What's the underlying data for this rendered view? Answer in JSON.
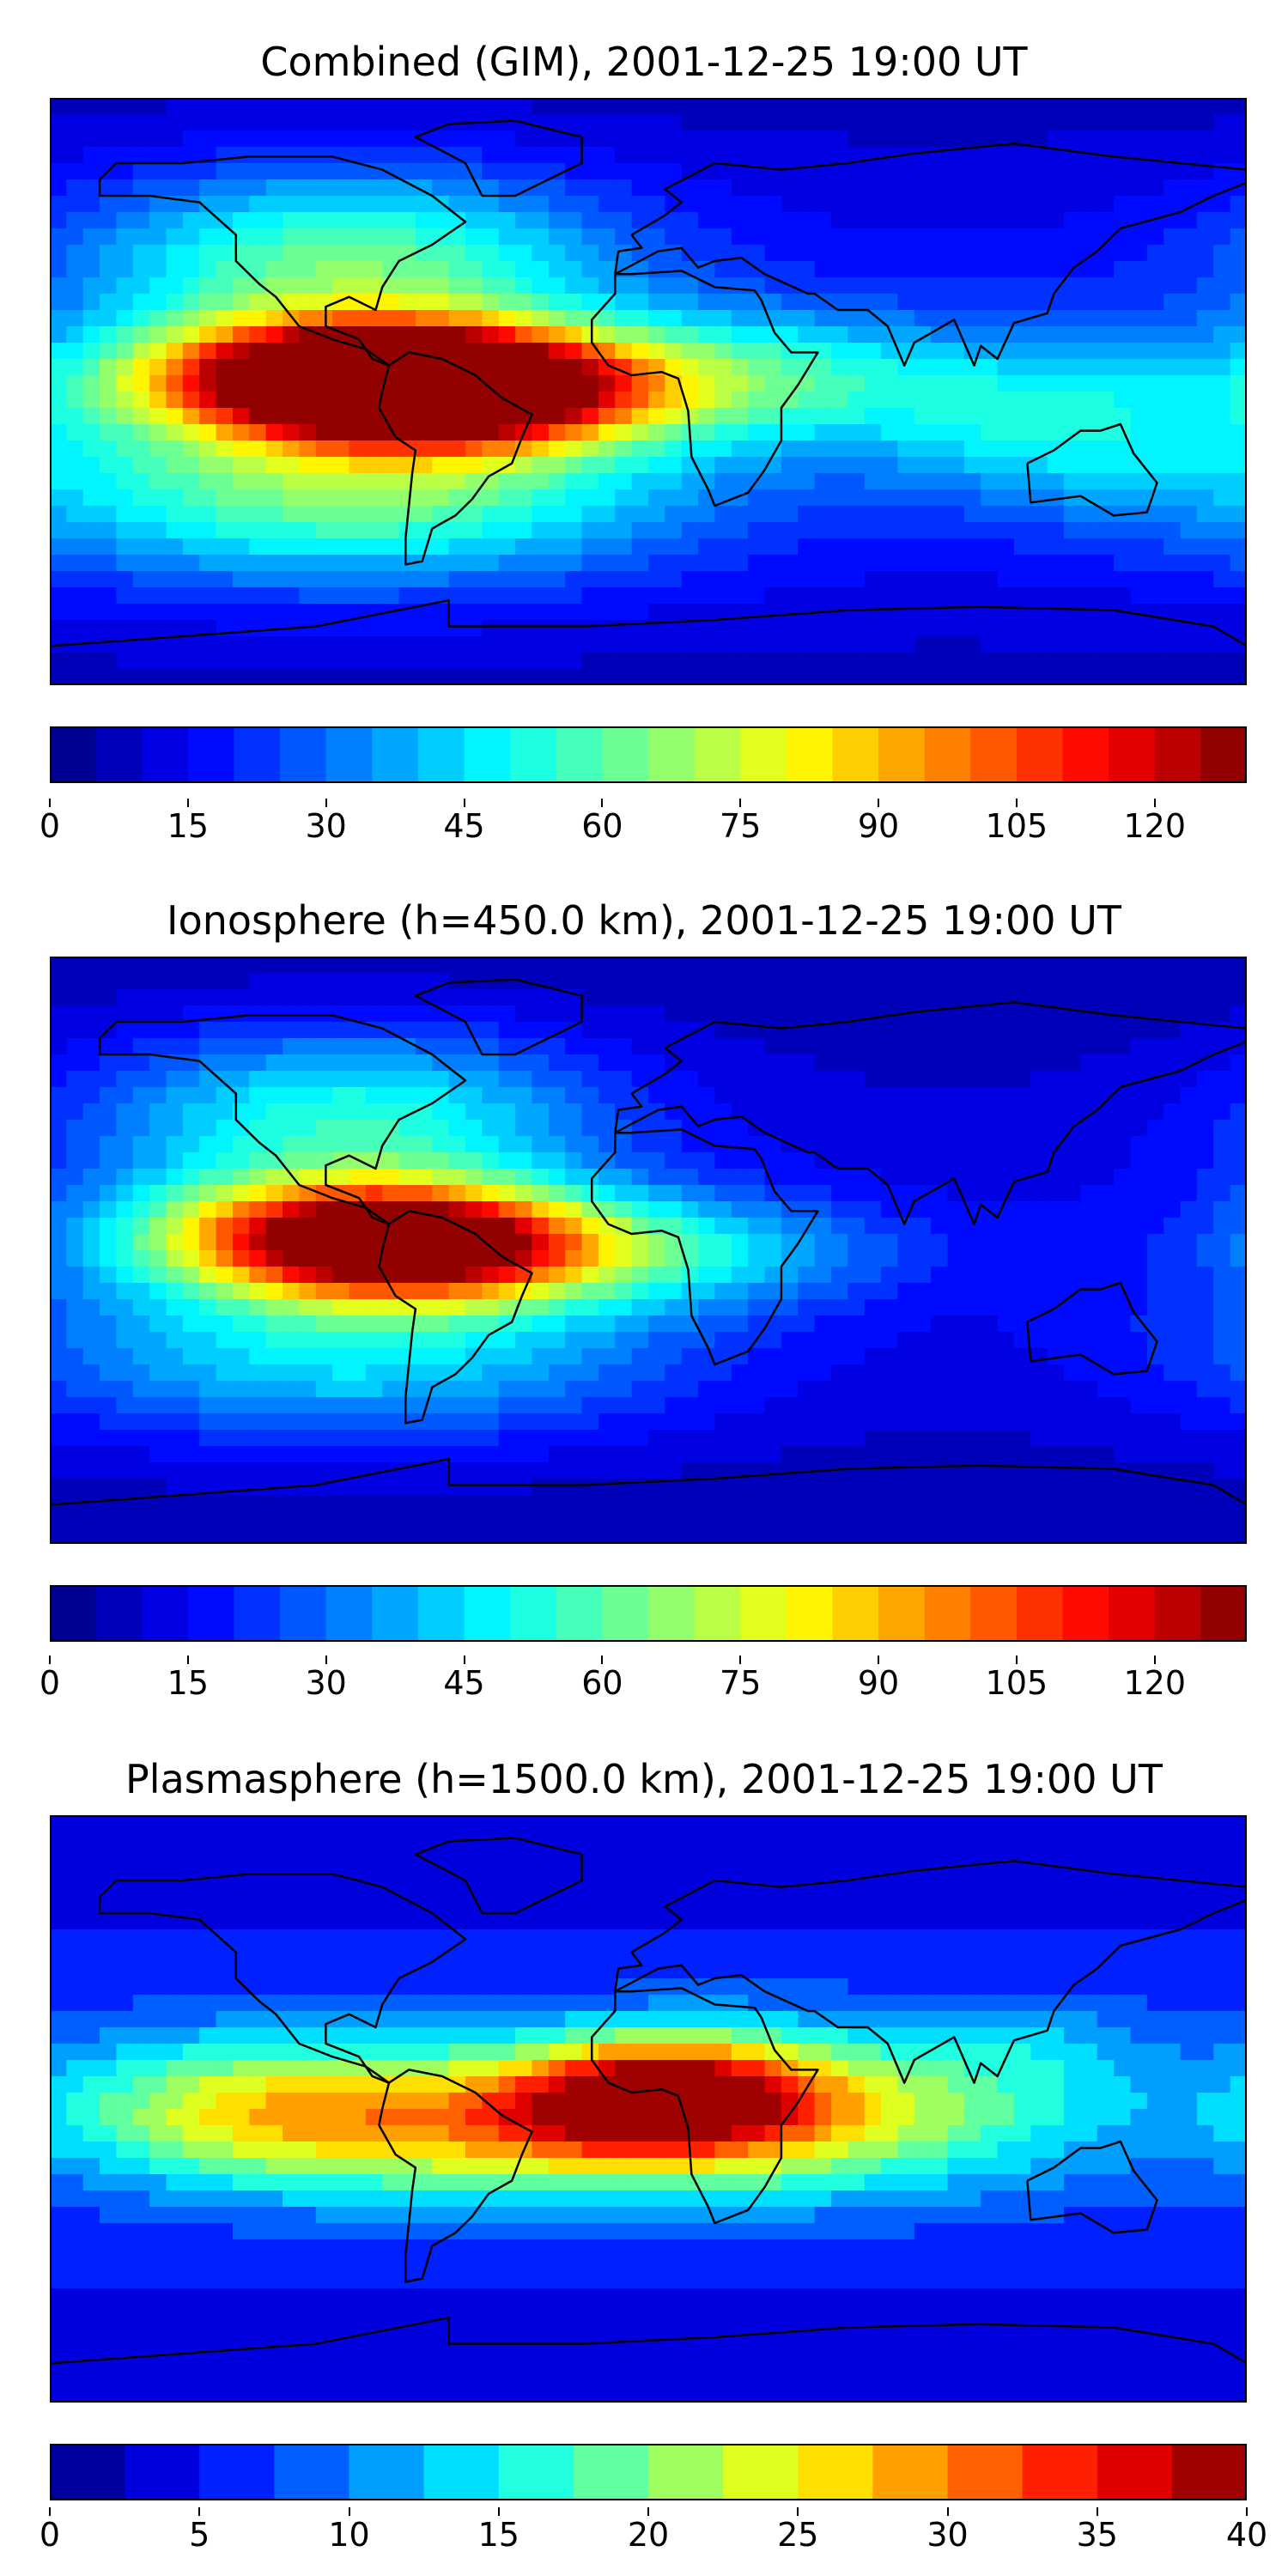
{
  "chart_data": [
    {
      "type": "heatmap",
      "title": "Combined (GIM), 2001-12-25 19:00 UT",
      "colorbar": {
        "min": 0,
        "max": 130,
        "levels": 26,
        "ticks": [
          0,
          15,
          30,
          45,
          60,
          75,
          90,
          105,
          120
        ]
      },
      "extent": {
        "lon": [
          -180,
          180
        ],
        "lat": [
          -90,
          90
        ]
      },
      "features": [
        {
          "lon": -90,
          "lat": 5,
          "value": 120,
          "spread_lon": 45,
          "spread_lat": 12
        },
        {
          "lon": -60,
          "lat": 0,
          "value": 112,
          "spread_lon": 40,
          "spread_lat": 12
        },
        {
          "lon": -90,
          "lat": 40,
          "value": 60,
          "spread_lon": 55,
          "spread_lat": 20
        },
        {
          "lon": -90,
          "lat": -30,
          "value": 62,
          "spread_lon": 70,
          "spread_lat": 20
        },
        {
          "lon": 30,
          "lat": 5,
          "value": 45,
          "spread_lon": 45,
          "spread_lat": 14
        },
        {
          "lon": 120,
          "lat": -10,
          "value": 40,
          "spread_lon": 40,
          "spread_lat": 18
        }
      ],
      "background": 22
    },
    {
      "type": "heatmap",
      "title": "Ionosphere  (h=450.0 km), 2001-12-25 19:00 UT",
      "colorbar": {
        "min": 0,
        "max": 130,
        "levels": 26,
        "ticks": [
          0,
          15,
          30,
          45,
          60,
          75,
          90,
          105,
          120
        ]
      },
      "extent": {
        "lon": [
          -180,
          180
        ],
        "lat": [
          -90,
          90
        ]
      },
      "features": [
        {
          "lon": -90,
          "lat": 5,
          "value": 88,
          "spread_lon": 45,
          "spread_lat": 12
        },
        {
          "lon": -65,
          "lat": 0,
          "value": 78,
          "spread_lon": 40,
          "spread_lat": 12
        },
        {
          "lon": -90,
          "lat": 40,
          "value": 52,
          "spread_lon": 55,
          "spread_lat": 20
        },
        {
          "lon": -90,
          "lat": -30,
          "value": 45,
          "spread_lon": 70,
          "spread_lat": 20
        },
        {
          "lon": 20,
          "lat": 0,
          "value": 32,
          "spread_lon": 40,
          "spread_lat": 12
        }
      ],
      "background": 15
    },
    {
      "type": "heatmap",
      "title": "Plasmasphere (h=1500.0 km), 2001-12-25 19:00 UT",
      "colorbar": {
        "min": 0,
        "max": 40,
        "levels": 16,
        "ticks": [
          0,
          5,
          10,
          15,
          20,
          25,
          30,
          35,
          40
        ]
      },
      "extent": {
        "lon": [
          -180,
          180
        ],
        "lat": [
          -90,
          90
        ]
      },
      "features": [
        {
          "lon": 5,
          "lat": 5,
          "value": 27,
          "spread_lon": 30,
          "spread_lat": 12
        },
        {
          "lon": -35,
          "lat": -5,
          "value": 23,
          "spread_lon": 60,
          "spread_lat": 16
        },
        {
          "lon": 60,
          "lat": 0,
          "value": 17,
          "spread_lon": 55,
          "spread_lat": 18
        },
        {
          "lon": -120,
          "lat": 0,
          "value": 18,
          "spread_lon": 40,
          "spread_lat": 16
        },
        {
          "lon": 120,
          "lat": 20,
          "value": 8,
          "spread_lon": 20,
          "spread_lat": 10
        }
      ],
      "background": 8
    }
  ]
}
